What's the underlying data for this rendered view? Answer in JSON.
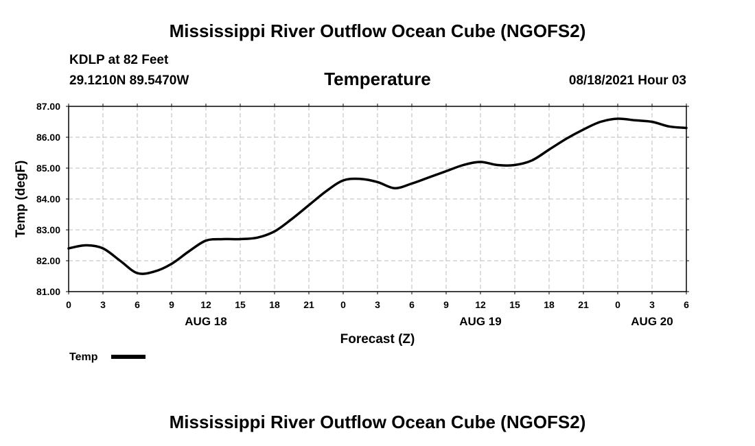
{
  "header": {
    "title": "Mississippi River Outflow Ocean Cube (NGOFS2)",
    "station": "KDLP at 82 Feet",
    "coordinates": "29.1210N  89.5470W",
    "subtitle": "Temperature",
    "run_time": "08/18/2021 Hour 03"
  },
  "footer": {
    "title": "Mississippi River Outflow Ocean Cube (NGOFS2)"
  },
  "chart_data": {
    "type": "line",
    "title": "Temperature",
    "xlabel": "Forecast (Z)",
    "ylabel": "Temp (degF)",
    "xlim": [
      0,
      54
    ],
    "ylim": [
      81.0,
      87.0
    ],
    "grid": true,
    "x_ticks": [
      0,
      3,
      6,
      9,
      12,
      15,
      18,
      21,
      24,
      27,
      30,
      33,
      36,
      39,
      42,
      45,
      48,
      51,
      54
    ],
    "x_tick_labels": [
      "0",
      "3",
      "6",
      "9",
      "12",
      "15",
      "18",
      "21",
      "0",
      "3",
      "6",
      "9",
      "12",
      "15",
      "18",
      "21",
      "0",
      "3",
      "6"
    ],
    "y_ticks": [
      81.0,
      82.0,
      83.0,
      84.0,
      85.0,
      86.0,
      87.0
    ],
    "y_tick_labels": [
      "81.00",
      "82.00",
      "83.00",
      "84.00",
      "85.00",
      "86.00",
      "87.00"
    ],
    "date_labels": [
      {
        "label": "AUG 18",
        "x": 12
      },
      {
        "label": "AUG 19",
        "x": 36
      },
      {
        "label": "AUG 20",
        "x": 51
      }
    ],
    "legend": {
      "label": "Temp",
      "position": "bottom-left"
    },
    "series": [
      {
        "name": "Temp",
        "x": [
          0,
          1.5,
          3,
          4.5,
          6,
          7.5,
          9,
          10.5,
          12,
          13.5,
          15,
          16.5,
          18,
          19.5,
          21,
          22.5,
          24,
          25.5,
          27,
          28.5,
          30,
          31.5,
          33,
          34.5,
          36,
          37.5,
          39,
          40.5,
          42,
          43.5,
          45,
          46.5,
          48,
          49.5,
          51,
          52.5,
          54
        ],
        "values": [
          82.4,
          82.5,
          82.4,
          82.0,
          81.6,
          81.65,
          81.9,
          82.3,
          82.65,
          82.7,
          82.7,
          82.75,
          82.95,
          83.35,
          83.8,
          84.25,
          84.6,
          84.65,
          84.55,
          84.35,
          84.5,
          84.7,
          84.9,
          85.1,
          85.2,
          85.1,
          85.1,
          85.25,
          85.6,
          85.95,
          86.25,
          86.5,
          86.6,
          86.55,
          86.5,
          86.35,
          86.3
        ]
      }
    ]
  }
}
